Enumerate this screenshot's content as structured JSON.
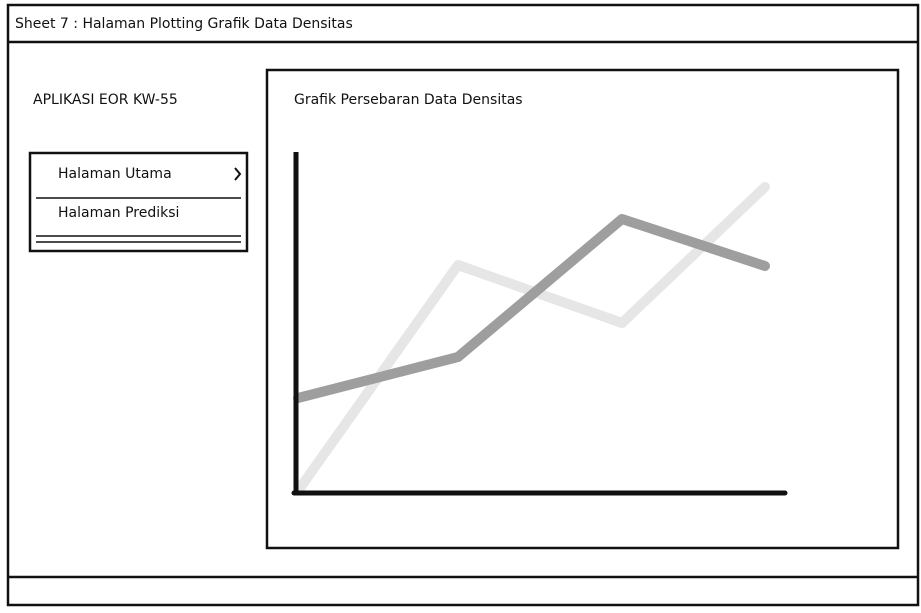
{
  "header": {
    "title": "Sheet 7 : Halaman Plotting Grafik Data Densitas"
  },
  "sidebar": {
    "app_title": "APLIKASI EOR KW-55",
    "menu": [
      "Halaman Utama",
      "Halaman Prediksi"
    ]
  },
  "panel": {
    "title": "Grafik Persebaran Data Densitas"
  }
}
